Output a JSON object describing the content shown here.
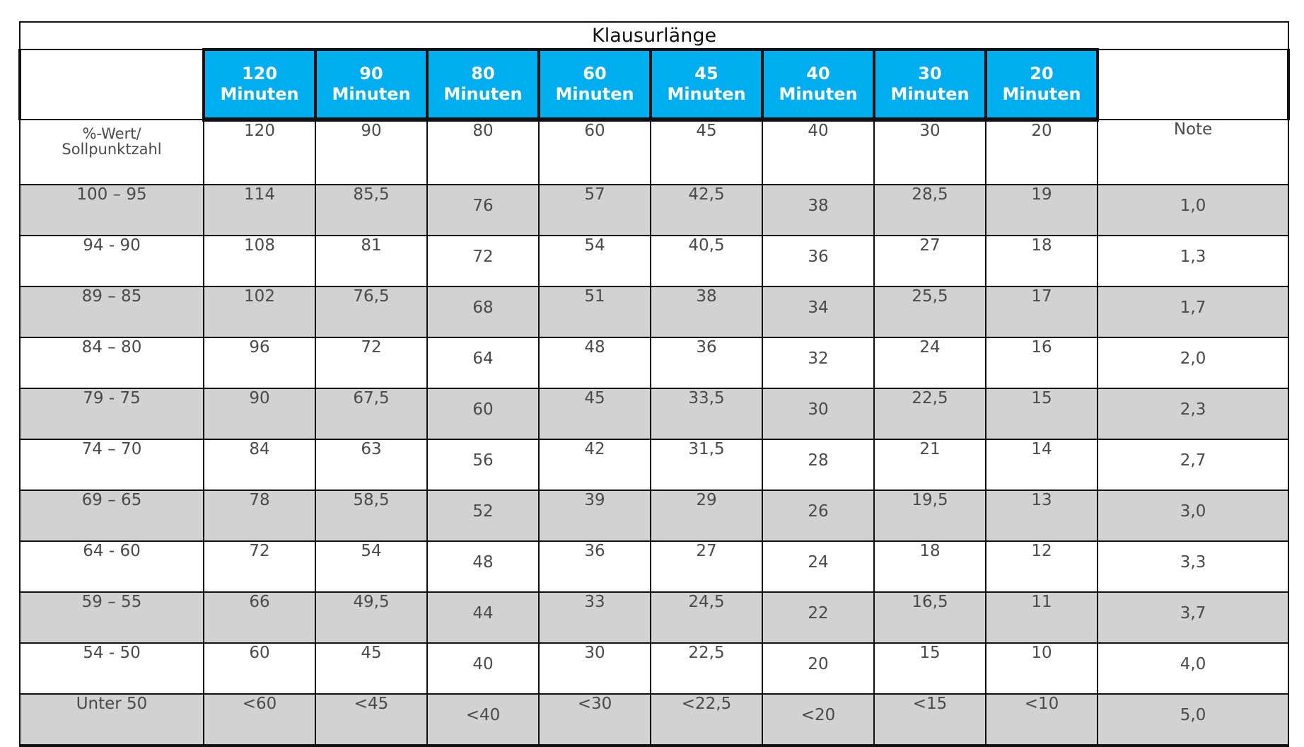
{
  "table": {
    "title": "Klausurlänge",
    "durations": [
      {
        "num": "120",
        "unit": "Minuten"
      },
      {
        "num": "90",
        "unit": "Minuten"
      },
      {
        "num": "80",
        "unit": "Minuten"
      },
      {
        "num": "60",
        "unit": "Minuten"
      },
      {
        "num": "45",
        "unit": "Minuten"
      },
      {
        "num": "40",
        "unit": "Minuten"
      },
      {
        "num": "30",
        "unit": "Minuten"
      },
      {
        "num": "20",
        "unit": "Minuten"
      }
    ],
    "points_row": {
      "label_line1": "%-Wert/",
      "label_line2": "Sollpunktzahl",
      "values": [
        "120",
        "90",
        "80",
        "60",
        "45",
        "40",
        "30",
        "20"
      ],
      "note_header": "Note"
    },
    "rows": [
      {
        "range": "100 – 95",
        "values": [
          "114",
          "85,5",
          "76",
          "57",
          "42,5",
          "38",
          "28,5",
          "19"
        ],
        "grade": "1,0"
      },
      {
        "range": "94 - 90",
        "values": [
          "108",
          "81",
          "72",
          "54",
          "40,5",
          "36",
          "27",
          "18"
        ],
        "grade": "1,3"
      },
      {
        "range": "89 – 85",
        "values": [
          "102",
          "76,5",
          "68",
          "51",
          "38",
          "34",
          "25,5",
          "17"
        ],
        "grade": "1,7"
      },
      {
        "range": "84 – 80",
        "values": [
          "96",
          "72",
          "64",
          "48",
          "36",
          "32",
          "24",
          "16"
        ],
        "grade": "2,0"
      },
      {
        "range": "79 - 75",
        "values": [
          "90",
          "67,5",
          "60",
          "45",
          "33,5",
          "30",
          "22,5",
          "15"
        ],
        "grade": "2,3"
      },
      {
        "range": "74 – 70",
        "values": [
          "84",
          "63",
          "56",
          "42",
          "31,5",
          "28",
          "21",
          "14"
        ],
        "grade": "2,7"
      },
      {
        "range": "69 – 65",
        "values": [
          "78",
          "58,5",
          "52",
          "39",
          "29",
          "26",
          "19,5",
          "13"
        ],
        "grade": "3,0"
      },
      {
        "range": "64 - 60",
        "values": [
          "72",
          "54",
          "48",
          "36",
          "27",
          "24",
          "18",
          "12"
        ],
        "grade": "3,3"
      },
      {
        "range": "59 – 55",
        "values": [
          "66",
          "49,5",
          "44",
          "33",
          "24,5",
          "22",
          "16,5",
          "11"
        ],
        "grade": "3,7"
      },
      {
        "range": "54 - 50",
        "values": [
          "60",
          "45",
          "40",
          "30",
          "22,5",
          "20",
          "15",
          "10"
        ],
        "grade": "4,0"
      },
      {
        "range": "Unter 50",
        "values": [
          "<60",
          "<45",
          "<40",
          "<30",
          "<22,5",
          "<20",
          "<15",
          "<10"
        ],
        "grade": "5,0"
      }
    ],
    "colors": {
      "header_blue": "#00adef",
      "row_gray": "#d2d2d2",
      "border": "#111111",
      "text": "#4a4a4a"
    }
  }
}
